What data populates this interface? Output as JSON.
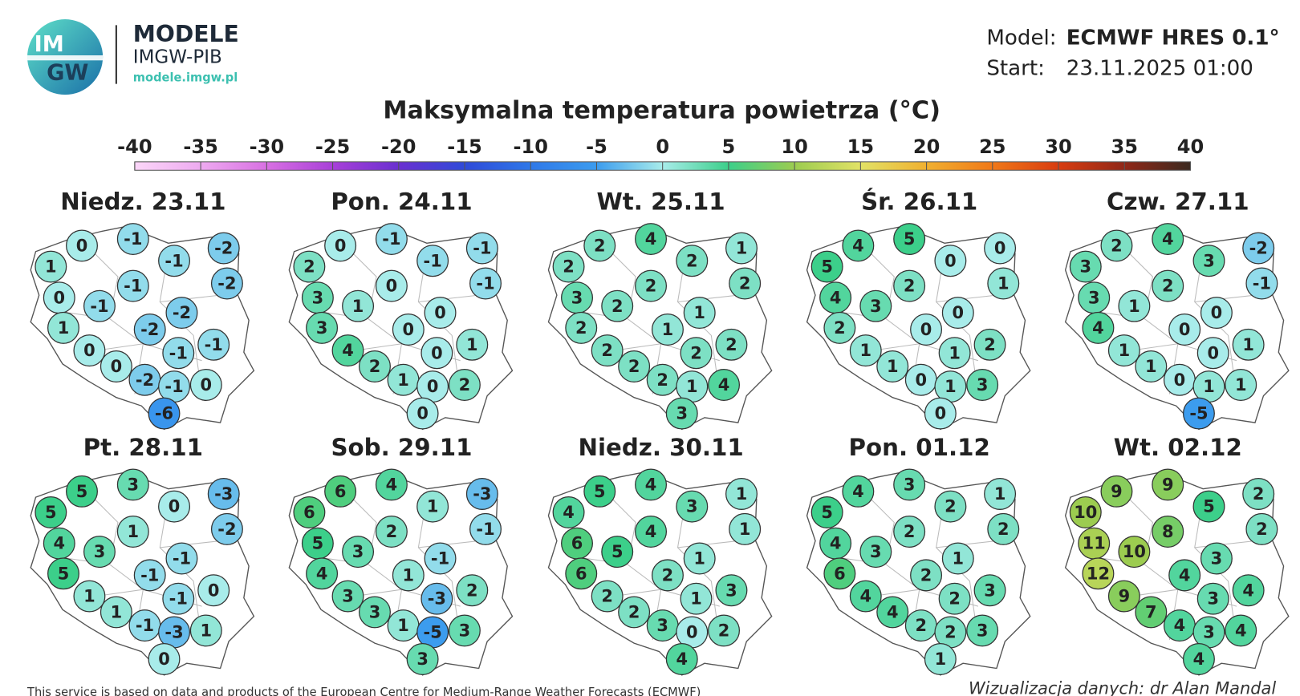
{
  "header": {
    "logo_top": "IM",
    "logo_bottom": "GW",
    "title": "MODELE",
    "subtitle": "IMGW-PIB",
    "url": "modele.imgw.pl"
  },
  "model": {
    "model_label": "Model:",
    "model_value": "ECMWF HRES 0.1°",
    "start_label": "Start:",
    "start_value": "23.11.2025 01:00"
  },
  "title": "Maksymalna temperatura powietrza (°C)",
  "colorbar": {
    "ticks": [
      -40,
      -35,
      -30,
      -25,
      -20,
      -15,
      -10,
      -5,
      0,
      5,
      10,
      15,
      20,
      25,
      30,
      35,
      40
    ],
    "colors": [
      "#fbd6f8",
      "#eeaaf0",
      "#d870e2",
      "#a840d8",
      "#6a30d0",
      "#2f4ad8",
      "#2f78e8",
      "#3c9cee",
      "#a8ecea",
      "#3ccf8a",
      "#9ccc50",
      "#e2e266",
      "#f0b030",
      "#f07818",
      "#d83c10",
      "#902818",
      "#3c2a20"
    ]
  },
  "panels": [
    {
      "label": "Niedz. 23.11",
      "values": [
        1,
        0,
        -1,
        -1,
        -2,
        -2,
        0,
        -1,
        -1,
        -2,
        1,
        -2,
        -1,
        0,
        -1,
        0,
        -2,
        -1,
        0,
        -6
      ]
    },
    {
      "label": "Pon. 24.11",
      "values": [
        2,
        0,
        -1,
        -1,
        -1,
        -1,
        3,
        1,
        0,
        0,
        3,
        0,
        1,
        4,
        0,
        2,
        1,
        0,
        2,
        0
      ]
    },
    {
      "label": "Wt. 25.11",
      "values": [
        2,
        2,
        4,
        2,
        1,
        2,
        3,
        2,
        2,
        1,
        2,
        1,
        2,
        2,
        2,
        2,
        2,
        1,
        4,
        3
      ]
    },
    {
      "label": "Śr. 26.11",
      "values": [
        5,
        4,
        5,
        0,
        0,
        1,
        4,
        3,
        2,
        0,
        2,
        0,
        2,
        1,
        1,
        1,
        0,
        1,
        3,
        0
      ]
    },
    {
      "label": "Czw. 27.11",
      "values": [
        3,
        2,
        4,
        3,
        -2,
        -1,
        3,
        1,
        2,
        0,
        4,
        0,
        1,
        1,
        0,
        1,
        0,
        1,
        1,
        -5
      ]
    },
    {
      "label": "Pt. 28.11",
      "values": [
        5,
        5,
        3,
        0,
        -3,
        -2,
        4,
        3,
        1,
        -1,
        5,
        -1,
        0,
        1,
        -1,
        1,
        -1,
        -3,
        1,
        0
      ]
    },
    {
      "label": "Sob. 29.11",
      "values": [
        6,
        6,
        4,
        1,
        -3,
        -1,
        5,
        3,
        2,
        -1,
        4,
        1,
        2,
        3,
        -3,
        3,
        1,
        -5,
        3,
        3
      ]
    },
    {
      "label": "Niedz. 30.11",
      "values": [
        4,
        5,
        4,
        3,
        1,
        1,
        6,
        5,
        4,
        1,
        6,
        2,
        3,
        2,
        1,
        2,
        3,
        0,
        2,
        4
      ]
    },
    {
      "label": "Pon. 01.12",
      "values": [
        5,
        4,
        3,
        2,
        1,
        2,
        4,
        3,
        2,
        1,
        6,
        2,
        3,
        4,
        2,
        4,
        2,
        2,
        3,
        1
      ]
    },
    {
      "label": "Wt. 02.12",
      "values": [
        10,
        9,
        9,
        5,
        2,
        2,
        11,
        10,
        8,
        3,
        12,
        4,
        4,
        9,
        3,
        7,
        4,
        3,
        4,
        4
      ]
    }
  ],
  "footer": {
    "source": "This service is based on data and products of the European Centre for Medium-Range Weather Forecasts (ECMWF)",
    "credit": "Wizualizacja danych: dr Alan Mandal"
  }
}
